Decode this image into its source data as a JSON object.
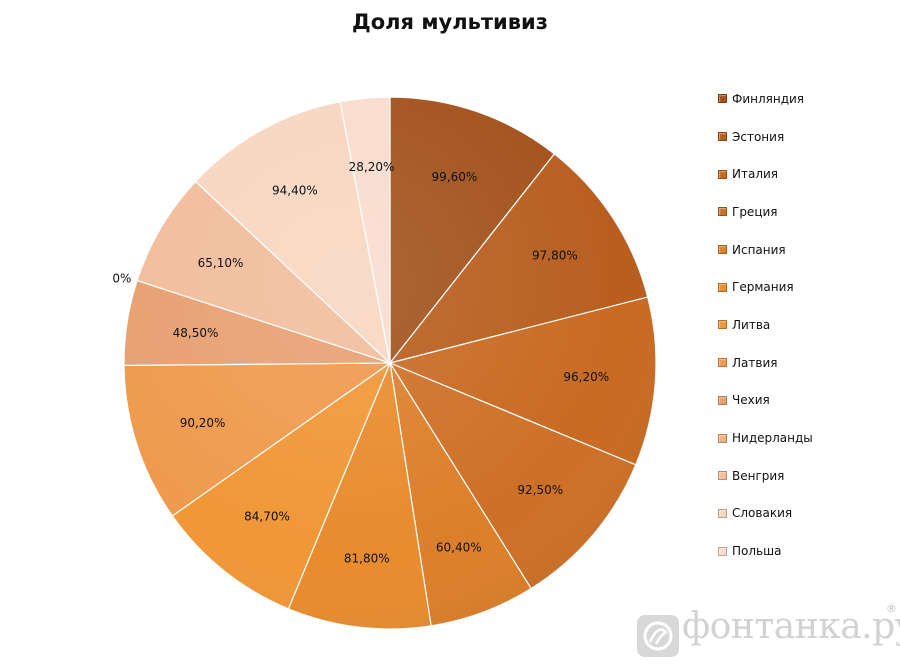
{
  "chart_data": {
    "type": "pie",
    "title": "Доля мультивиз",
    "legend_position": "right",
    "slices": [
      {
        "label": "Финляндия",
        "value": 99.6,
        "value_label": "99,60%",
        "color": "#a3521c"
      },
      {
        "label": "Эстония",
        "value": 97.8,
        "value_label": "97,80%",
        "color": "#b85e1f"
      },
      {
        "label": "Италия",
        "value": 96.2,
        "value_label": "96,20%",
        "color": "#c86a22"
      },
      {
        "label": "Греция",
        "value": 92.5,
        "value_label": "92,50%",
        "color": "#cd7027"
      },
      {
        "label": "Испания",
        "value": 60.4,
        "value_label": "60,40%",
        "color": "#dc7f2a"
      },
      {
        "label": "Германия",
        "value": 81.8,
        "value_label": "81,80%",
        "color": "#e88c2e"
      },
      {
        "label": "Литва",
        "value": 84.7,
        "value_label": "84,70%",
        "color": "#f09737"
      },
      {
        "label": "Латвия",
        "value": 90.2,
        "value_label": "90,20%",
        "color": "#ef9a4e"
      },
      {
        "label": "Чехия",
        "value": 48.5,
        "value_label": "48,50%",
        "color": "#e7a071"
      },
      {
        "label": "Нидерланды",
        "value": 0,
        "value_label": "0%",
        "color": "#f2b27f"
      },
      {
        "label": "Венгрия",
        "value": 65.1,
        "value_label": "65,10%",
        "color": "#f1bd9b"
      },
      {
        "label": "Словакия",
        "value": 94.4,
        "value_label": "94,40%",
        "color": "#f7d6c1"
      },
      {
        "label": "Польша",
        "value": 28.2,
        "value_label": "28,20%",
        "color": "#f9dccd"
      }
    ]
  },
  "watermark": {
    "text": "фонтанка.ру",
    "registered": "®"
  }
}
